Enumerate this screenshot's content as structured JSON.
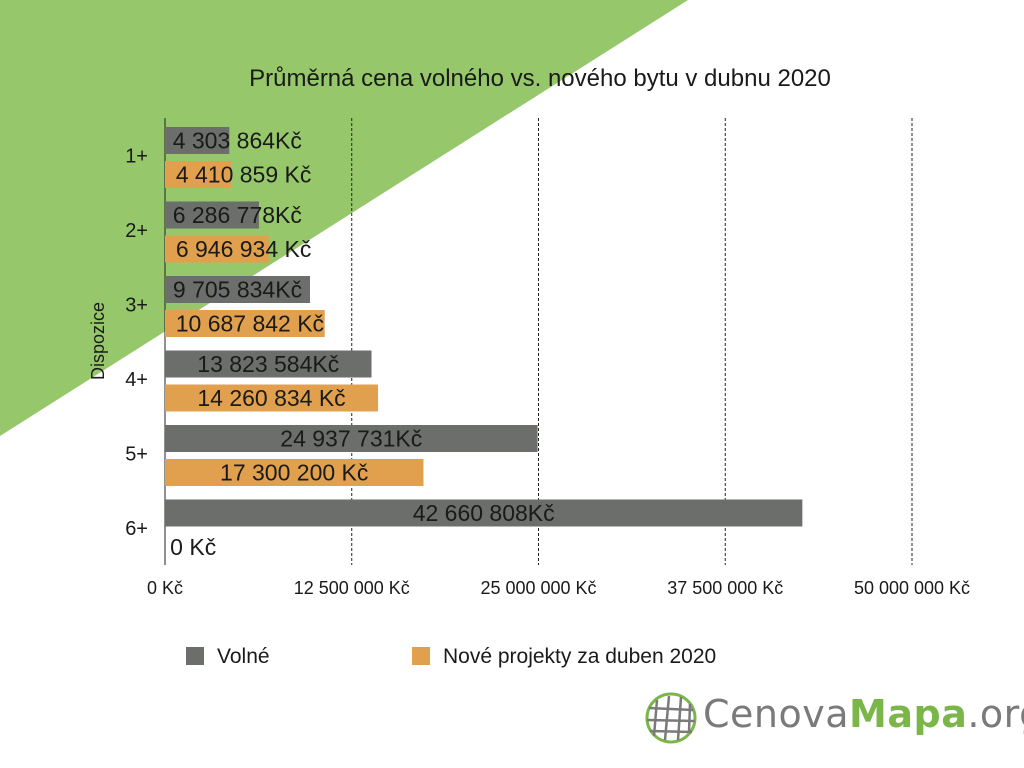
{
  "colors": {
    "background_accent": "#96c76a",
    "series_free": "#6b6e6b",
    "series_new": "#e0a04e",
    "logo_gray": "#7a7a7a",
    "logo_green": "#7ab648"
  },
  "chart_data": {
    "type": "bar",
    "orientation": "horizontal",
    "title": "Průměrná cena volného vs. nového bytu v dubnu 2020",
    "ylabel": "Dispozice",
    "xlabel": "",
    "categories": [
      "1+",
      "2+",
      "3+",
      "4+",
      "5+",
      "6+"
    ],
    "xlim": [
      0,
      50000000
    ],
    "xticks": [
      0,
      12500000,
      25000000,
      37500000,
      50000000
    ],
    "xtick_labels": [
      "0 Kč",
      "12 500 000 Kč",
      "25 000 000 Kč",
      "37 500 000 Kč",
      "50 000 000 Kč"
    ],
    "gridlines": "vertical dashed",
    "legend_position": "bottom",
    "series": [
      {
        "name": "Volné",
        "color": "#6b6e6b",
        "values": [
          4303864,
          6286778,
          9705834,
          13823584,
          24937731,
          42660808
        ],
        "labels": [
          "4 303 864Kč",
          "6 286 778Kč",
          "9 705 834Kč",
          "13 823 584Kč",
          "24 937 731Kč",
          "42 660 808Kč"
        ]
      },
      {
        "name": "Nové projekty za duben 2020",
        "color": "#e0a04e",
        "values": [
          4410859,
          6946934,
          10687842,
          14260834,
          17300200,
          0
        ],
        "labels": [
          "4 410 859 Kč",
          "6 946 934 Kč",
          "10 687 842 Kč",
          "14 260 834 Kč",
          "17 300 200 Kč",
          "0 Kč"
        ]
      }
    ]
  },
  "logo": {
    "part1": "Cenova",
    "part2": "Mapa",
    "part3": ".org",
    "icon": "globe-grid-icon"
  }
}
